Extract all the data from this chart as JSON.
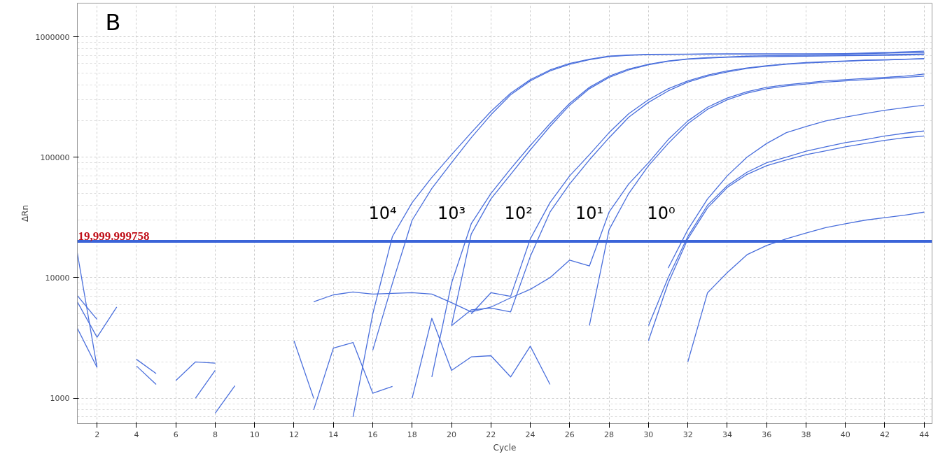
{
  "chart_data": {
    "type": "line",
    "xlabel": "Cycle",
    "ylabel": "ΔRn",
    "log": true,
    "grid": true,
    "marker": "none",
    "line_style": "solid",
    "xlim": [
      1,
      44.4
    ],
    "ylim": [
      615,
      1900000
    ],
    "xticks": [
      2,
      4,
      6,
      8,
      10,
      12,
      14,
      16,
      18,
      20,
      22,
      24,
      26,
      28,
      30,
      32,
      34,
      36,
      38,
      40,
      42,
      44
    ],
    "yticks": [
      1000,
      10000,
      100000,
      1000000
    ],
    "ref_lines": [
      {
        "axis": "y",
        "value": 19999.999758,
        "label": "19,999.999758",
        "color": "#3b64d8"
      }
    ],
    "annotations": [
      "B",
      "10⁴",
      "10³",
      "10²",
      "10¹",
      "10⁰"
    ],
    "series": [
      {
        "color": "#4a6fdc",
        "x": [
          15,
          16,
          17,
          18,
          19,
          20,
          21,
          22,
          23,
          24,
          25,
          26,
          27,
          28,
          29,
          30,
          32,
          34,
          36,
          38,
          40,
          42,
          44
        ],
        "values": [
          700,
          5000,
          22000,
          42000,
          68000,
          105000,
          160000,
          240000,
          340000,
          440000,
          530000,
          600000,
          650000,
          690000,
          705000,
          715000,
          718000,
          720000,
          720000,
          720000,
          720000,
          730000,
          740000
        ]
      },
      {
        "color": "#4a6fdc",
        "x": [
          16,
          17,
          18,
          19,
          20,
          21,
          22,
          23,
          24,
          25,
          26,
          27,
          28,
          29,
          30,
          32,
          34,
          36,
          38,
          40,
          42,
          44
        ],
        "values": [
          2500,
          9000,
          30000,
          55000,
          90000,
          145000,
          225000,
          330000,
          430000,
          520000,
          590000,
          645000,
          685000,
          700000,
          710000,
          715000,
          720000,
          720000,
          720000,
          725000,
          740000,
          760000
        ]
      },
      {
        "color": "#4a6fdc",
        "x": [
          19,
          20,
          21,
          22,
          23,
          24,
          25,
          26,
          27,
          28,
          29,
          30,
          31,
          32,
          33,
          34,
          35,
          36,
          38,
          40,
          42,
          44
        ],
        "values": [
          1500,
          9000,
          28000,
          50000,
          80000,
          125000,
          190000,
          280000,
          380000,
          470000,
          540000,
          590000,
          630000,
          655000,
          670000,
          680000,
          690000,
          695000,
          700000,
          705000,
          710000,
          720000
        ]
      },
      {
        "color": "#4a6fdc",
        "x": [
          20,
          21,
          22,
          23,
          24,
          25,
          26,
          27,
          28,
          29,
          30,
          31,
          32,
          33,
          34,
          36,
          38,
          40,
          42,
          44
        ],
        "values": [
          4000,
          23000,
          45000,
          72000,
          115000,
          180000,
          270000,
          370000,
          460000,
          530000,
          585000,
          625000,
          650000,
          665000,
          675000,
          685000,
          690000,
          695000,
          700000,
          710000
        ]
      },
      {
        "color": "#4a6fdc",
        "x": [
          21,
          22,
          23,
          24,
          25,
          26,
          27,
          28,
          29,
          30,
          31,
          32,
          33,
          34,
          35,
          36,
          37,
          38,
          39,
          40,
          41,
          42,
          43,
          44
        ],
        "values": [
          5000,
          7500,
          7000,
          21000,
          42000,
          70000,
          105000,
          160000,
          230000,
          300000,
          370000,
          430000,
          480000,
          520000,
          550000,
          575000,
          595000,
          610000,
          620000,
          630000,
          640000,
          645000,
          650000,
          660000
        ]
      },
      {
        "color": "#4a6fdc",
        "x": [
          20,
          21,
          22,
          23,
          24,
          25,
          26,
          27,
          28,
          29,
          30,
          31,
          32,
          33,
          34,
          35,
          36,
          37,
          38,
          39,
          40,
          41,
          42,
          43,
          44
        ],
        "values": [
          4000,
          5400,
          5600,
          5200,
          15000,
          35000,
          60000,
          95000,
          145000,
          215000,
          285000,
          355000,
          420000,
          470000,
          510000,
          545000,
          570000,
          590000,
          605000,
          615000,
          625000,
          635000,
          640000,
          648000,
          655000
        ]
      },
      {
        "color": "#4a6fdc",
        "x": [
          13,
          14,
          15,
          16,
          17,
          18,
          19,
          20,
          21,
          22,
          23,
          24,
          25,
          26,
          27,
          28,
          29,
          30,
          31,
          32,
          33,
          34,
          35,
          36,
          37,
          38,
          39,
          40,
          41,
          42,
          43,
          44
        ],
        "values": [
          6300,
          7200,
          7600,
          7300,
          7400,
          7500,
          7300,
          6200,
          5200,
          5700,
          6800,
          8000,
          10000,
          14000,
          12500,
          35000,
          60000,
          90000,
          140000,
          200000,
          260000,
          310000,
          350000,
          380000,
          400000,
          415000,
          430000,
          440000,
          450000,
          460000,
          470000,
          490000
        ]
      },
      {
        "color": "#4a6fdc",
        "x": [
          27,
          28,
          29,
          30,
          31,
          32,
          33,
          34,
          35,
          36,
          37,
          38,
          39,
          40,
          41,
          42,
          43,
          44
        ],
        "values": [
          4000,
          25000,
          50000,
          85000,
          130000,
          190000,
          250000,
          300000,
          340000,
          370000,
          390000,
          405000,
          420000,
          430000,
          440000,
          450000,
          460000,
          470000
        ]
      },
      {
        "color": "#4a6fdc",
        "x": [
          31,
          32,
          33,
          34,
          35,
          36,
          37,
          38,
          39,
          40,
          41,
          42,
          43,
          44
        ],
        "values": [
          12000,
          25000,
          45000,
          70000,
          100000,
          130000,
          160000,
          180000,
          200000,
          215000,
          230000,
          245000,
          258000,
          270000
        ]
      },
      {
        "color": "#4a6fdc",
        "x": [
          30,
          31,
          32,
          33,
          34,
          35,
          36,
          37,
          38,
          39,
          40,
          41,
          42,
          43,
          44
        ],
        "values": [
          4000,
          10000,
          22000,
          40000,
          58000,
          75000,
          90000,
          100000,
          112000,
          122000,
          132000,
          140000,
          150000,
          158000,
          165000
        ]
      },
      {
        "color": "#4a6fdc",
        "x": [
          30,
          31,
          32,
          33,
          34,
          35,
          36,
          37,
          38,
          39,
          40,
          41,
          42,
          43,
          44
        ],
        "values": [
          3000,
          9000,
          21000,
          38000,
          56000,
          72000,
          85000,
          95000,
          105000,
          113000,
          122000,
          130000,
          138000,
          145000,
          150000
        ]
      },
      {
        "color": "#4a6fdc",
        "x": [
          32,
          33,
          34,
          35,
          36,
          37,
          38,
          39,
          40,
          41,
          42,
          43,
          44
        ],
        "values": [
          2000,
          7500,
          11000,
          15500,
          18500,
          21000,
          23500,
          26000,
          28000,
          30000,
          31500,
          33000,
          35000
        ]
      },
      {
        "color": "#4a6fdc",
        "x": [
          1,
          2
        ],
        "values": [
          16000,
          1800
        ]
      },
      {
        "color": "#4a6fdc",
        "x": [
          1,
          2
        ],
        "values": [
          7100,
          4500
        ]
      },
      {
        "color": "#4a6fdc",
        "x": [
          1,
          2,
          3
        ],
        "values": [
          6300,
          3200,
          5700
        ]
      },
      {
        "color": "#4a6fdc",
        "x": [
          1,
          2
        ],
        "values": [
          3800,
          1800
        ]
      },
      {
        "color": "#4a6fdc",
        "x": [
          4,
          5
        ],
        "values": [
          2100,
          1600
        ]
      },
      {
        "color": "#4a6fdc",
        "x": [
          4,
          5
        ],
        "values": [
          1850,
          1300
        ]
      },
      {
        "color": "#4a6fdc",
        "x": [
          6,
          7,
          8
        ],
        "values": [
          1400,
          2000,
          1950
        ]
      },
      {
        "color": "#4a6fdc",
        "x": [
          7,
          8
        ],
        "values": [
          1000,
          1700
        ]
      },
      {
        "color": "#4a6fdc",
        "x": [
          8,
          9
        ],
        "values": [
          750,
          1270
        ]
      },
      {
        "color": "#4a6fdc",
        "x": [
          12,
          13
        ],
        "values": [
          3000,
          1000
        ]
      },
      {
        "color": "#4a6fdc",
        "x": [
          13,
          14,
          15,
          16,
          17
        ],
        "values": [
          800,
          2600,
          2900,
          1100,
          1250
        ]
      },
      {
        "color": "#4a6fdc",
        "x": [
          18,
          19,
          20,
          21,
          22,
          23,
          24,
          25
        ],
        "values": [
          1000,
          4600,
          1700,
          2200,
          2250,
          1500,
          2700,
          1300
        ]
      }
    ]
  }
}
